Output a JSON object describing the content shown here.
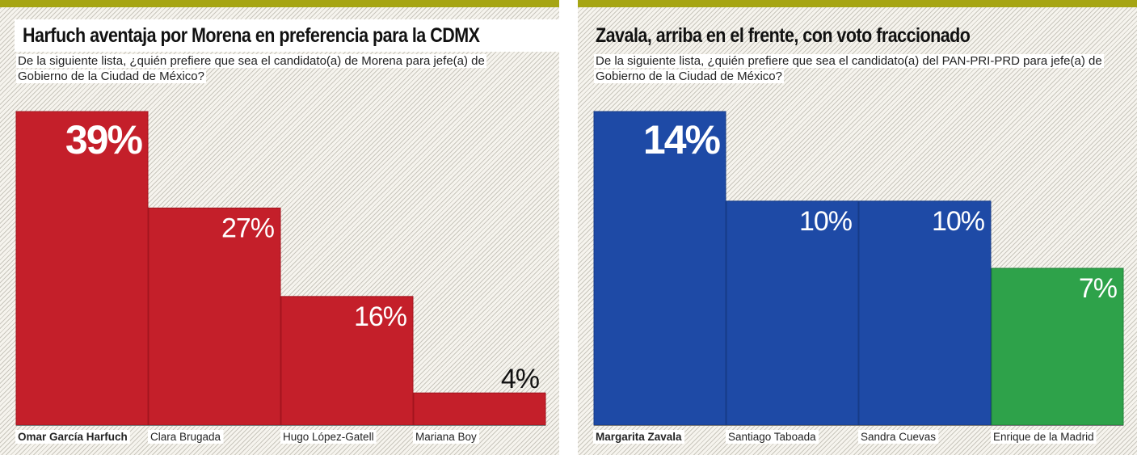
{
  "colors": {
    "morena": "#c41f2a",
    "morena_stroke": "#a3141e",
    "pan_pri_prd": "#1e4aa6",
    "pan_pri_prd_stroke": "#163b87",
    "green": "#2ea24a",
    "green_stroke": "#1f8136",
    "accent_bar": "#a6a513"
  },
  "left": {
    "title": "Harfuch aventaja por Morena en preferencia para la CDMX",
    "question": "De la siguiente lista, ¿quién prefiere que sea el candidato(a) de Morena para jefe(a) de Gobierno de la Ciudad de México?"
  },
  "right": {
    "title": "Zavala, arriba en el frente, con voto fraccionado",
    "question": "De la siguiente lista, ¿quién prefiere que sea el candidato(a) del PAN-PRI-PRD para jefe(a) de Gobierno de la Ciudad de México?"
  },
  "chart_data": [
    {
      "type": "bar",
      "title": "Harfuch aventaja por Morena en preferencia para la CDMX",
      "categories": [
        "Omar García Harfuch",
        "Clara Brugada",
        "Hugo López-Gatell",
        "Mariana Boy"
      ],
      "values": [
        39,
        27,
        16,
        4
      ],
      "labels": [
        "39%",
        "27%",
        "16%",
        "4%"
      ],
      "unit": "%",
      "highlight": [
        true,
        false,
        false,
        false
      ],
      "colors": [
        "morena",
        "morena",
        "morena",
        "morena"
      ],
      "ylim": [
        0,
        39
      ]
    },
    {
      "type": "bar",
      "title": "Zavala, arriba en el frente, con voto fraccionado",
      "categories": [
        "Margarita Zavala",
        "Santiago Taboada",
        "Sandra Cuevas",
        "Enrique de la Madrid"
      ],
      "values": [
        14,
        10,
        10,
        7
      ],
      "labels": [
        "14%",
        "10%",
        "10%",
        "7%"
      ],
      "unit": "%",
      "highlight": [
        true,
        false,
        false,
        false
      ],
      "colors": [
        "pan_pri_prd",
        "pan_pri_prd",
        "pan_pri_prd",
        "green"
      ],
      "ylim": [
        0,
        14
      ]
    }
  ]
}
